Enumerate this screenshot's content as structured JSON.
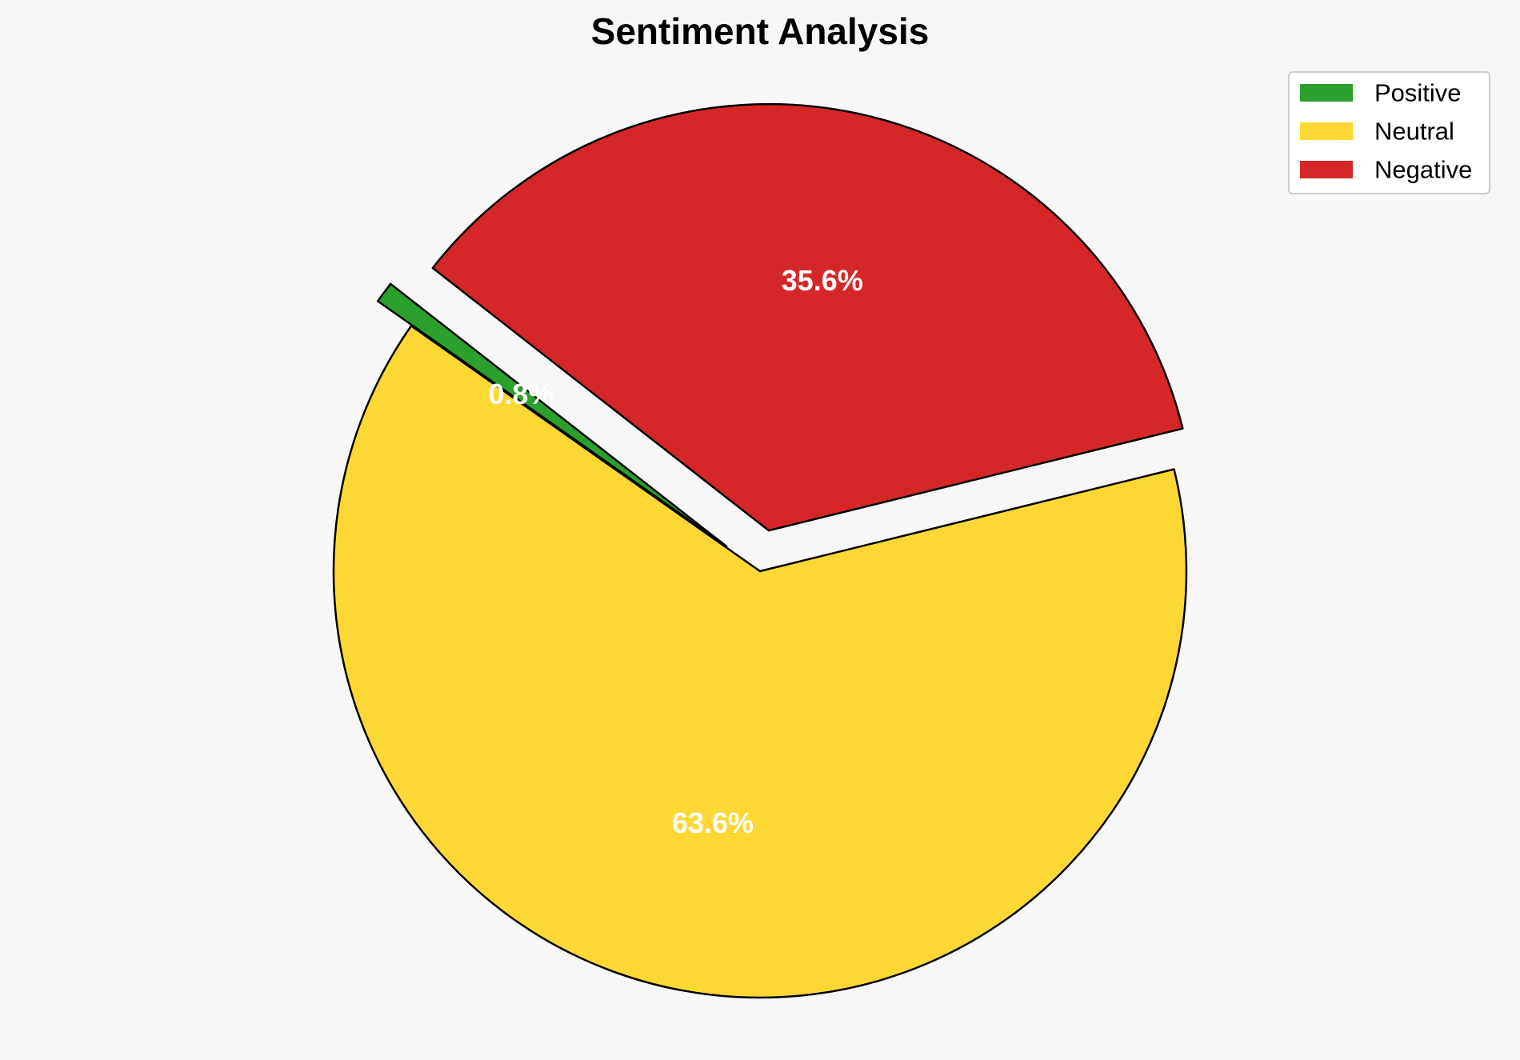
{
  "chart_data": {
    "type": "pie",
    "title": "Sentiment Analysis",
    "categories": [
      "Positive",
      "Neutral",
      "Negative"
    ],
    "values": [
      0.8,
      63.6,
      35.6
    ],
    "labels": [
      "0.8%",
      "63.6%",
      "35.6%"
    ],
    "colors": [
      "#2ca02c",
      "#fdd835",
      "#d62728"
    ],
    "exploded": [
      true,
      false,
      true
    ],
    "start_angle_deg": 142,
    "direction": "counterclockwise",
    "edge_color": "#000000",
    "label_color": "#ffffff",
    "legend_position": "top-right"
  }
}
